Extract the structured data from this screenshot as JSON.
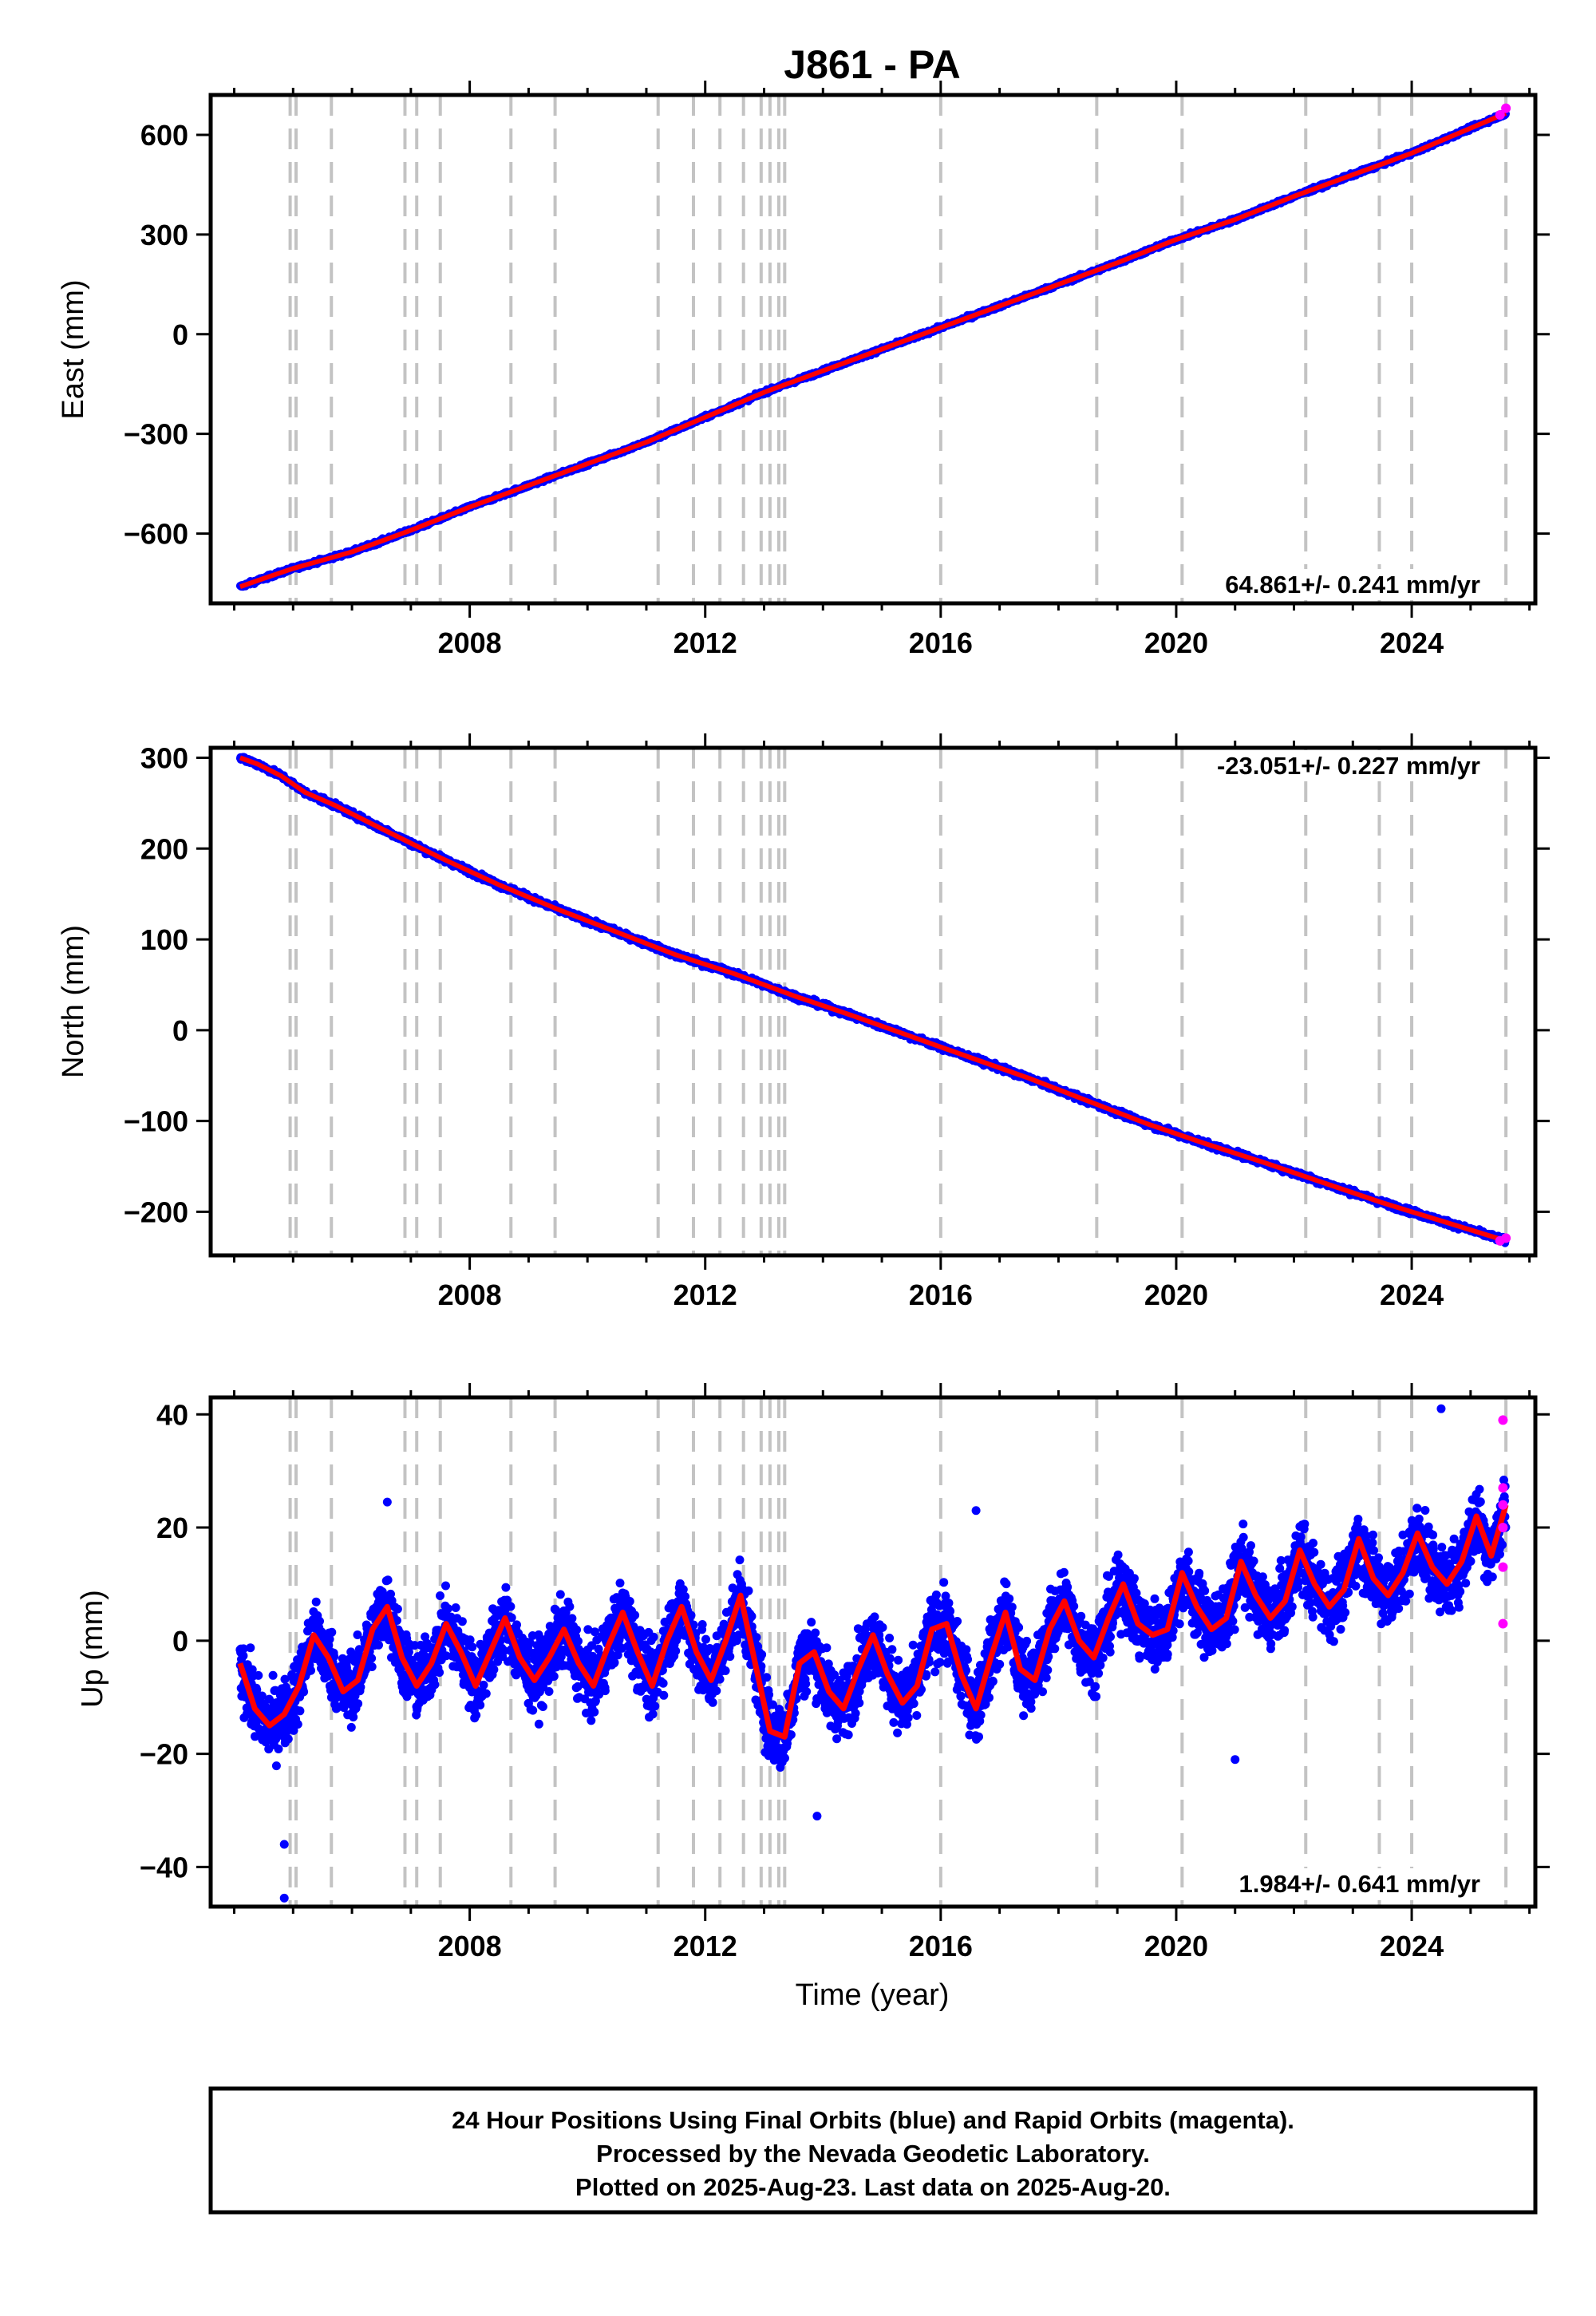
{
  "chart_data": {
    "type": "scatter",
    "title": "J861 - PA",
    "xlabel": "Time (year)",
    "xlim": [
      2003.6,
      2026.1
    ],
    "x_ticks": [
      2008,
      2012,
      2016,
      2020,
      2024
    ],
    "x_tick_labels": [
      "2008",
      "2012",
      "2016",
      "2020",
      "2024"
    ],
    "event_lines_year": [
      2004.95,
      2005.05,
      2005.65,
      2006.9,
      2007.1,
      2007.5,
      2008.7,
      2009.45,
      2011.2,
      2011.8,
      2012.25,
      2012.65,
      2012.95,
      2013.1,
      2013.25,
      2013.35,
      2016.0,
      2018.65,
      2020.1,
      2022.2,
      2023.45,
      2024.0,
      2025.6
    ],
    "legend": [
      {
        "name": "Final Orbits",
        "color": "#0000ff"
      },
      {
        "name": "Rapid Orbits",
        "color": "#ff00ff"
      },
      {
        "name": "fit",
        "color": "#ff0000"
      }
    ],
    "panels": [
      {
        "component": "east",
        "ylabel": "East (mm)",
        "ylim": [
          -810,
          720
        ],
        "y_ticks": [
          600,
          300,
          0,
          -300,
          -600
        ],
        "y_tick_labels": [
          "600",
          "300",
          "0",
          "−300",
          "−600"
        ],
        "rate_label": "64.861+/- 0.241 mm/yr",
        "rate_position": "bottom-right",
        "series": [
          {
            "role": "fit",
            "x": [
              2004.1,
              2004.5,
              2005.0,
              2006.0,
              2007.0,
              2008.0,
              2009.0,
              2010.0,
              2011.0,
              2012.0,
              2013.0,
              2014.0,
              2015.0,
              2016.0,
              2017.0,
              2018.0,
              2019.0,
              2020.0,
              2021.0,
              2022.0,
              2023.0,
              2024.0,
              2025.0,
              2025.6
            ],
            "y": [
              -760,
              -735,
              -705,
              -655,
              -590,
              -520,
              -455,
              -390,
              -325,
              -250,
              -175,
              -110,
              -45,
              20,
              85,
              150,
              215,
              285,
              345,
              415,
              480,
              545,
              620,
              665
            ]
          },
          {
            "role": "rapid",
            "x": [
              2025.5,
              2025.6
            ],
            "y": [
              660,
              680
            ]
          }
        ]
      },
      {
        "component": "north",
        "ylabel": "North (mm)",
        "ylim": [
          -248,
          311
        ],
        "y_ticks": [
          300,
          200,
          100,
          0,
          -100,
          -200
        ],
        "y_tick_labels": [
          "300",
          "200",
          "100",
          "0",
          "−100",
          "−200"
        ],
        "rate_label": "-23.051+/- 0.227 mm/yr",
        "rate_position": "top-right",
        "series": [
          {
            "role": "fit",
            "x": [
              2004.1,
              2004.4,
              2004.8,
              2005.2,
              2005.7,
              2006.5,
              2007.5,
              2008.5,
              2009.5,
              2010.5,
              2011.5,
              2012.5,
              2013.5,
              2014.5,
              2015.5,
              2016.5,
              2017.5,
              2018.5,
              2019.5,
              2020.5,
              2021.5,
              2022.5,
              2023.5,
              2024.5,
              2025.6
            ],
            "y": [
              300,
              293,
              280,
              262,
              248,
              222,
              190,
              160,
              133,
              108,
              83,
              62,
              38,
              16,
              -7,
              -30,
              -53,
              -78,
              -103,
              -125,
              -146,
              -168,
              -190,
              -210,
              -232
            ]
          },
          {
            "role": "rapid",
            "x": [
              2025.5,
              2025.6
            ],
            "y": [
              -232,
              -229
            ]
          }
        ]
      },
      {
        "component": "up",
        "ylabel": "Up (mm)",
        "ylim": [
          -47,
          43
        ],
        "y_ticks": [
          40,
          20,
          0,
          -20,
          -40
        ],
        "y_tick_labels": [
          "40",
          "20",
          "0",
          "−20",
          "−40"
        ],
        "rate_label": "1.984+/- 0.641 mm/yr",
        "rate_position": "bottom-right",
        "series": [
          {
            "role": "fit",
            "x": [
              2004.1,
              2004.35,
              2004.6,
              2004.85,
              2005.1,
              2005.35,
              2005.6,
              2005.85,
              2006.1,
              2006.35,
              2006.6,
              2006.85,
              2007.1,
              2007.35,
              2007.6,
              2007.85,
              2008.1,
              2008.35,
              2008.6,
              2008.85,
              2009.1,
              2009.35,
              2009.6,
              2009.85,
              2010.1,
              2010.35,
              2010.6,
              2010.85,
              2011.1,
              2011.35,
              2011.6,
              2011.85,
              2012.1,
              2012.35,
              2012.6,
              2012.85,
              2013.1,
              2013.35,
              2013.6,
              2013.85,
              2014.1,
              2014.35,
              2014.6,
              2014.85,
              2015.1,
              2015.35,
              2015.6,
              2015.85,
              2016.1,
              2016.35,
              2016.6,
              2016.85,
              2017.1,
              2017.35,
              2017.6,
              2017.85,
              2018.1,
              2018.35,
              2018.6,
              2018.85,
              2019.1,
              2019.35,
              2019.6,
              2019.85,
              2020.1,
              2020.35,
              2020.6,
              2020.85,
              2021.1,
              2021.35,
              2021.6,
              2021.85,
              2022.1,
              2022.35,
              2022.6,
              2022.85,
              2023.1,
              2023.35,
              2023.6,
              2023.85,
              2024.1,
              2024.35,
              2024.6,
              2024.85,
              2025.1,
              2025.35,
              2025.6
            ],
            "y": [
              -4,
              -12,
              -15,
              -13,
              -8,
              1,
              -3,
              -9,
              -7,
              2,
              6,
              -3,
              -8,
              -4,
              3,
              -2,
              -8,
              -2,
              4,
              -3,
              -7,
              -3,
              2,
              -4,
              -8,
              -1,
              5,
              -2,
              -8,
              0,
              6,
              -2,
              -7,
              0,
              8,
              -4,
              -16,
              -17,
              -4,
              -2,
              -9,
              -12,
              -5,
              1,
              -6,
              -11,
              -8,
              2,
              3,
              -6,
              -12,
              -3,
              5,
              -5,
              -7,
              2,
              7,
              0,
              -3,
              4,
              10,
              3,
              1,
              2,
              12,
              6,
              2,
              4,
              14,
              8,
              4,
              7,
              16,
              10,
              6,
              9,
              18,
              11,
              8,
              12,
              19,
              13,
              10,
              14,
              22,
              15,
              24
            ]
          },
          {
            "role": "rapid",
            "x": [
              2025.55,
              2025.55,
              2025.55,
              2025.55,
              2025.55,
              2025.55
            ],
            "y": [
              39,
              27,
              24,
              20,
              13,
              3
            ]
          }
        ]
      }
    ]
  },
  "footer": {
    "line1": "24 Hour Positions Using Final Orbits (blue) and Rapid Orbits (magenta).",
    "line2": "Processed by the Nevada Geodetic Laboratory.",
    "line3": "Plotted on 2025-Aug-23. Last data on 2025-Aug-20."
  }
}
